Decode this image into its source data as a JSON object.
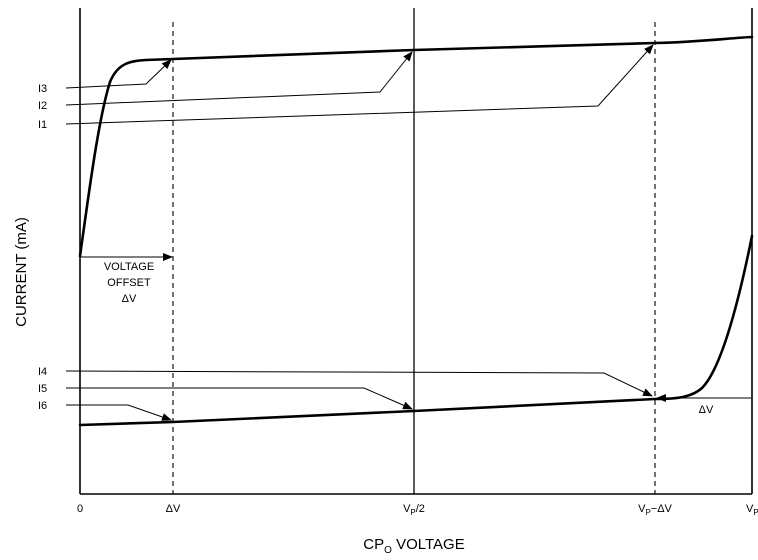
{
  "y_axis_label": "CURRENT (mA)",
  "x_axis_label_main": "CP",
  "x_axis_label_sub": "O",
  "x_axis_label_tail": " VOLTAGE",
  "x_ticks": {
    "zero": "0",
    "dv": "ΔV",
    "vp_half_main": "V",
    "vp_half_sub": "P",
    "vp_half_tail": "/2",
    "vp_minus_main": "V",
    "vp_minus_sub": "P",
    "vp_minus_tail": "−ΔV",
    "vp_main": "V",
    "vp_sub": "P"
  },
  "current_labels": [
    "I3",
    "I2",
    "I1",
    "I4",
    "I5",
    "I6"
  ],
  "annotations": {
    "offset_line1": "VOLTAGE",
    "offset_line2": "OFFSET",
    "offset_line3": "ΔV",
    "right_dv": "ΔV"
  }
}
